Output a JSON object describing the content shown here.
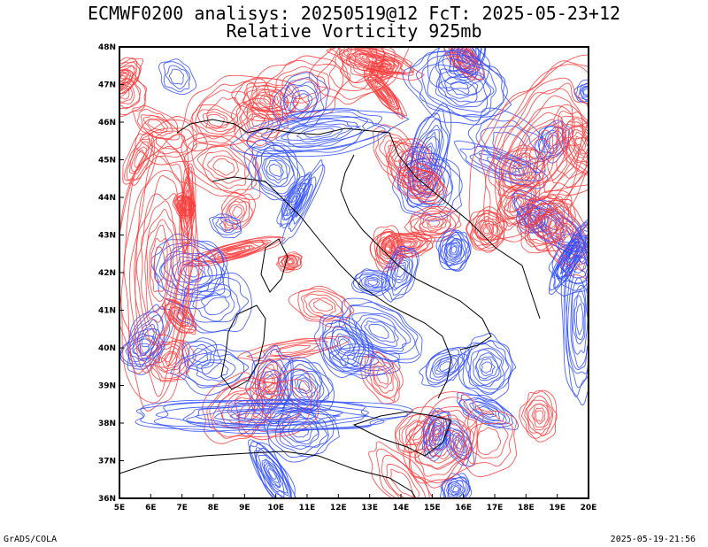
{
  "header": {
    "line1": "ECMWF0200 analisys: 20250519@12 FcT: 2025-05-23+12",
    "line2": "Relative Vorticity 925mb"
  },
  "map": {
    "lon_labels": [
      "5E",
      "6E",
      "7E",
      "8E",
      "9E",
      "10E",
      "11E",
      "12E",
      "13E",
      "14E",
      "15E",
      "16E",
      "17E",
      "18E",
      "19E",
      "20E"
    ],
    "lat_labels": [
      "36N",
      "37N",
      "38N",
      "39N",
      "40N",
      "41N",
      "42N",
      "43N",
      "44N",
      "45N",
      "46N",
      "47N",
      "48N"
    ],
    "lon_range": [
      5,
      20
    ],
    "lat_range": [
      36,
      48
    ],
    "field": "Relative Vorticity",
    "level": "925mb",
    "colors": {
      "positive": "#ff3a3a",
      "negative": "#2a4aff",
      "borders": "#000000"
    }
  },
  "footer": {
    "credit": "GrADS/COLA",
    "timestamp": "2025-05-19-21:56"
  }
}
